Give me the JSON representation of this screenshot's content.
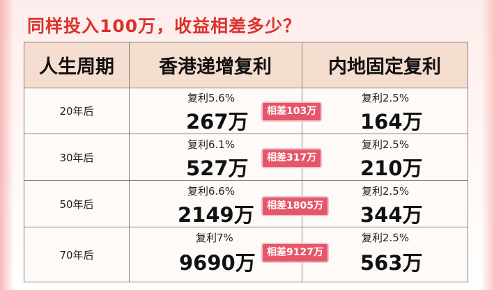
{
  "title": "同样投入100万，收益相差多少？",
  "headers": [
    "人生周期",
    "香港递增复利",
    "内地固定复利"
  ],
  "rows": [
    {
      "period": "20年后",
      "hk_rate": "复利5.6%",
      "hk_amount": "267万",
      "diff": "相差103万",
      "cn_rate": "复利2.5%",
      "cn_amount": "164万"
    },
    {
      "period": "30年后",
      "hk_rate": "复利6.1%",
      "hk_amount": "527万",
      "diff": "相差317万",
      "cn_rate": "复利2.5%",
      "cn_amount": "210万"
    },
    {
      "period": "50年后",
      "hk_rate": "复利6.6%",
      "hk_amount": "2149万",
      "diff": "相差1805万",
      "cn_rate": "复利2.5%",
      "cn_amount": "344万"
    },
    {
      "period": "70年后",
      "hk_rate": "复利7%",
      "hk_amount": "9690万",
      "diff": "相差9127万",
      "cn_rate": "复利2.5%",
      "cn_amount": "563万"
    }
  ],
  "colors": {
    "title": "#d8322c",
    "header_bg": "#f5ddd0",
    "diff_badge": "#e5566a"
  }
}
